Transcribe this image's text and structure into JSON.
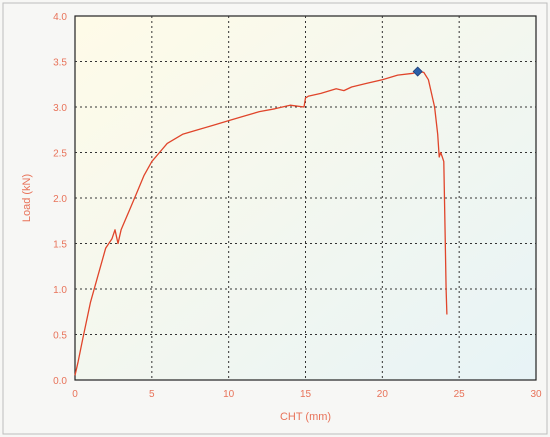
{
  "chart_data": {
    "type": "line",
    "xlabel": "CHT (mm)",
    "ylabel": "Load (kN)",
    "xlim": [
      0,
      30
    ],
    "ylim": [
      0,
      4.0
    ],
    "x_ticks": [
      0,
      5,
      10,
      15,
      20,
      25,
      30
    ],
    "x_tick_labels": [
      "0",
      "5",
      "10",
      "15",
      "20",
      "25",
      "30"
    ],
    "y_ticks": [
      0,
      0.5,
      1.0,
      1.5,
      2.0,
      2.5,
      3.0,
      3.5,
      4.0
    ],
    "y_tick_labels": [
      "0.0",
      "0.5",
      "1.0",
      "1.5",
      "2.0",
      "2.5",
      "3.0",
      "3.5",
      "4.0"
    ],
    "grid": true,
    "background_gradient": [
      "#fffbe8",
      "#e7f3f6"
    ],
    "series": [
      {
        "color": "#e0452b",
        "x": [
          0,
          0.2,
          0.5,
          1.0,
          1.5,
          2.0,
          2.4,
          2.6,
          2.8,
          3.0,
          3.5,
          4.0,
          4.5,
          5.0,
          5.5,
          6.0,
          7.0,
          8.0,
          9.0,
          10.0,
          11.0,
          12.0,
          13.0,
          14.0,
          14.9,
          15.0,
          15.2,
          16.0,
          17.0,
          17.5,
          18.0,
          19.0,
          20.0,
          21.0,
          22.0,
          22.3,
          22.7,
          23.0,
          23.4,
          23.6,
          23.7,
          23.8,
          23.9,
          24.0,
          24.1,
          24.15,
          24.2
        ],
        "y": [
          0.05,
          0.2,
          0.45,
          0.85,
          1.15,
          1.45,
          1.55,
          1.65,
          1.5,
          1.65,
          1.85,
          2.05,
          2.25,
          2.4,
          2.5,
          2.6,
          2.7,
          2.75,
          2.8,
          2.85,
          2.9,
          2.95,
          2.98,
          3.02,
          3.0,
          3.1,
          3.12,
          3.15,
          3.2,
          3.18,
          3.22,
          3.26,
          3.3,
          3.35,
          3.37,
          3.39,
          3.38,
          3.3,
          3.0,
          2.7,
          2.45,
          2.5,
          2.45,
          2.4,
          1.5,
          1.0,
          0.72
        ]
      }
    ],
    "annotations": [
      {
        "type": "marker",
        "x": 22.3,
        "y": 3.39,
        "color": "#2a5fa8",
        "shape": "diamond"
      }
    ]
  }
}
